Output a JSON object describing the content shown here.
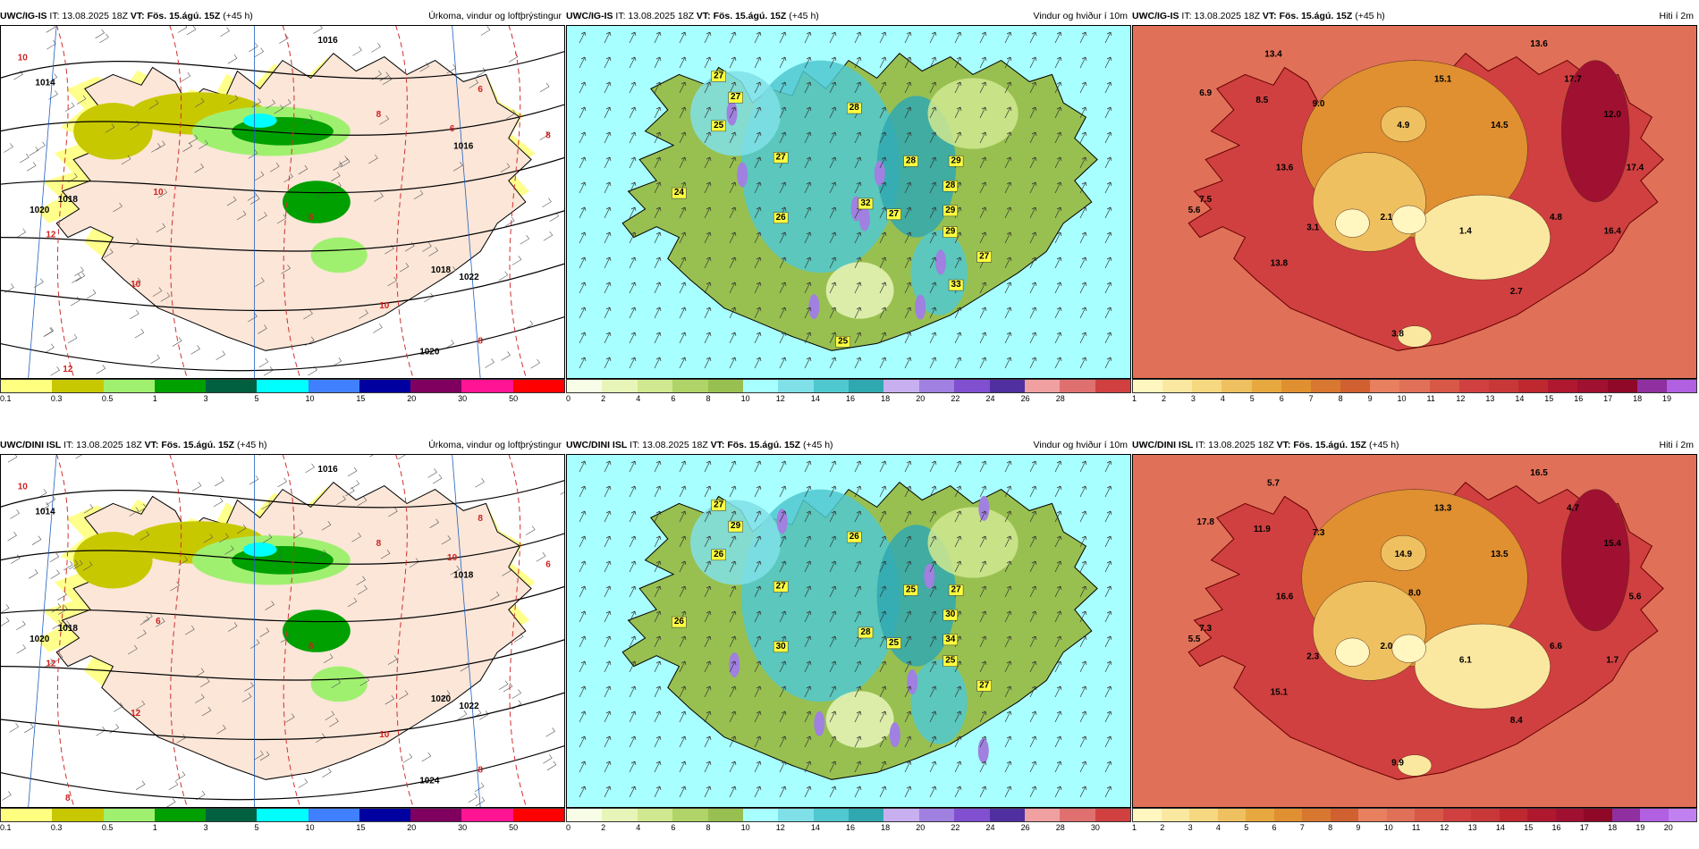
{
  "panels": [
    {
      "id": "r1c1",
      "model": "UWC/IG-IS",
      "it": "IT: 13.08.2025 18Z",
      "vt": "VT: Fös. 15.ágú. 15Z",
      "lead": "(+45 h)",
      "title": "Úrkoma, vindur og loftþrýstingur",
      "type": "precip",
      "colorbar": {
        "colors": [
          "#ffff80",
          "#c8c800",
          "#a0f070",
          "#00a000",
          "#006040",
          "#00ffff",
          "#4080ff",
          "#0000a0",
          "#800060",
          "#ff1493",
          "#ff0000"
        ],
        "labels": [
          "0.1",
          "0.3",
          "0.5",
          "1",
          "3",
          "5",
          "10",
          "15",
          "20",
          "30",
          "50"
        ]
      },
      "isobars": [
        "1014",
        "1016",
        "1018",
        "1020",
        "1022",
        "1016",
        "1018",
        "1020"
      ],
      "temps": [
        "10",
        "12",
        "10",
        "6",
        "6",
        "8",
        "10",
        "8",
        "10",
        "8",
        "8",
        "12"
      ]
    },
    {
      "id": "r1c2",
      "model": "UWC/IG-IS",
      "it": "IT: 13.08.2025 18Z",
      "vt": "VT: Fös. 15.ágú. 15Z",
      "lead": "(+45 h)",
      "title": "Vindur og hviður í 10m",
      "type": "wind",
      "colorbar": {
        "colors": [
          "#f8fde8",
          "#e8f5b8",
          "#d0e890",
          "#b0d468",
          "#98c050",
          "#a8ffff",
          "#80e0e8",
          "#50c8d0",
          "#30a8b0",
          "#c8b0f0",
          "#a080e0",
          "#8050d0",
          "#5030a0",
          "#f0a0a0",
          "#e07070",
          "#d04040"
        ],
        "labels": [
          "0",
          "2",
          "4",
          "6",
          "8",
          "10",
          "12",
          "14",
          "16",
          "18",
          "20",
          "22",
          "24",
          "26",
          "28"
        ]
      },
      "gusts": [
        "27",
        "27",
        "25",
        "28",
        "27",
        "24",
        "26",
        "32",
        "28",
        "29",
        "28",
        "27",
        "29",
        "29",
        "27",
        "33",
        "25"
      ]
    },
    {
      "id": "r1c3",
      "model": "UWC/IG-IS",
      "it": "IT: 13.08.2025 18Z",
      "vt": "VT: Fös. 15.ágú. 15Z",
      "lead": "(+45 h)",
      "title": "Hiti í 2m",
      "type": "temp",
      "colorbar": {
        "colors": [
          "#fff6c0",
          "#fbe8a0",
          "#f5d880",
          "#eec060",
          "#e8a840",
          "#e09030",
          "#d87830",
          "#d06030",
          "#e88060",
          "#e07058",
          "#d85848",
          "#d04040",
          "#c83838",
          "#c02830",
          "#b01830",
          "#a01030",
          "#900828",
          "#9030a0",
          "#b060e0"
        ],
        "labels": [
          "1",
          "2",
          "3",
          "4",
          "5",
          "6",
          "7",
          "8",
          "9",
          "10",
          "11",
          "12",
          "13",
          "14",
          "15",
          "16",
          "17",
          "18",
          "19"
        ]
      },
      "temps": [
        "13.4",
        "13.6",
        "6.9",
        "8.5",
        "9.0",
        "15.1",
        "17.7",
        "4.9",
        "14.5",
        "12.0",
        "13.6",
        "17.4",
        "7.5",
        "5.6",
        "3.1",
        "2.1",
        "1.4",
        "4.8",
        "16.4",
        "13.8",
        "2.7",
        "3.8"
      ]
    },
    {
      "id": "r2c1",
      "model": "UWC/DINI ISL",
      "it": "IT: 13.08.2025 18Z",
      "vt": "VT: Fös. 15.ágú. 15Z",
      "lead": "(+45 h)",
      "title": "Úrkoma, vindur og loftþrýstingur",
      "type": "precip",
      "colorbar": {
        "colors": [
          "#ffff80",
          "#c8c800",
          "#a0f070",
          "#00a000",
          "#006040",
          "#00ffff",
          "#4080ff",
          "#0000a0",
          "#800060",
          "#ff1493",
          "#ff0000"
        ],
        "labels": [
          "0.1",
          "0.3",
          "0.5",
          "1",
          "3",
          "5",
          "10",
          "15",
          "20",
          "30",
          "50"
        ]
      },
      "isobars": [
        "1014",
        "1016",
        "1018",
        "1020",
        "1022",
        "1018",
        "1020",
        "1024"
      ],
      "temps": [
        "10",
        "12",
        "6",
        "8",
        "10",
        "8",
        "10",
        "8",
        "12",
        "8",
        "6",
        "8"
      ]
    },
    {
      "id": "r2c2",
      "model": "UWC/DINI ISL",
      "it": "IT: 13.08.2025 18Z",
      "vt": "VT: Fös. 15.ágú. 15Z",
      "lead": "(+45 h)",
      "title": "Vindur og hviður í 10m",
      "type": "wind",
      "colorbar": {
        "colors": [
          "#f8fde8",
          "#e8f5b8",
          "#d0e890",
          "#b0d468",
          "#98c050",
          "#a8ffff",
          "#80e0e8",
          "#50c8d0",
          "#30a8b0",
          "#c8b0f0",
          "#a080e0",
          "#8050d0",
          "#5030a0",
          "#f0a0a0",
          "#e07070",
          "#d04040"
        ],
        "labels": [
          "0",
          "2",
          "4",
          "6",
          "8",
          "10",
          "12",
          "14",
          "16",
          "18",
          "20",
          "22",
          "24",
          "26",
          "28",
          "30"
        ]
      },
      "gusts": [
        "27",
        "29",
        "26",
        "26",
        "27",
        "26",
        "30",
        "28",
        "25",
        "27",
        "30",
        "25",
        "34",
        "25",
        "27"
      ]
    },
    {
      "id": "r2c3",
      "model": "UWC/DINI ISL",
      "it": "IT: 13.08.2025 18Z",
      "vt": "VT: Fös. 15.ágú. 15Z",
      "lead": "(+45 h)",
      "title": "Hiti í 2m",
      "type": "temp",
      "colorbar": {
        "colors": [
          "#fff6c0",
          "#fbe8a0",
          "#f5d880",
          "#eec060",
          "#e8a840",
          "#e09030",
          "#d87830",
          "#d06030",
          "#e88060",
          "#e07058",
          "#d85848",
          "#d04040",
          "#c83838",
          "#c02830",
          "#b01830",
          "#a01030",
          "#900828",
          "#9030a0",
          "#b060e0",
          "#c080f0"
        ],
        "labels": [
          "1",
          "2",
          "3",
          "4",
          "5",
          "6",
          "7",
          "8",
          "9",
          "10",
          "11",
          "12",
          "13",
          "14",
          "15",
          "16",
          "17",
          "18",
          "19",
          "20"
        ]
      },
      "temps": [
        "5.7",
        "16.5",
        "17.8",
        "11.9",
        "7.3",
        "13.3",
        "4.7",
        "14.9",
        "13.5",
        "15.4",
        "16.6",
        "5.6",
        "7.3",
        "5.5",
        "2.3",
        "2.0",
        "6.1",
        "6.6",
        "1.7",
        "15.1",
        "8.4",
        "9.9",
        "8.0"
      ]
    }
  ]
}
